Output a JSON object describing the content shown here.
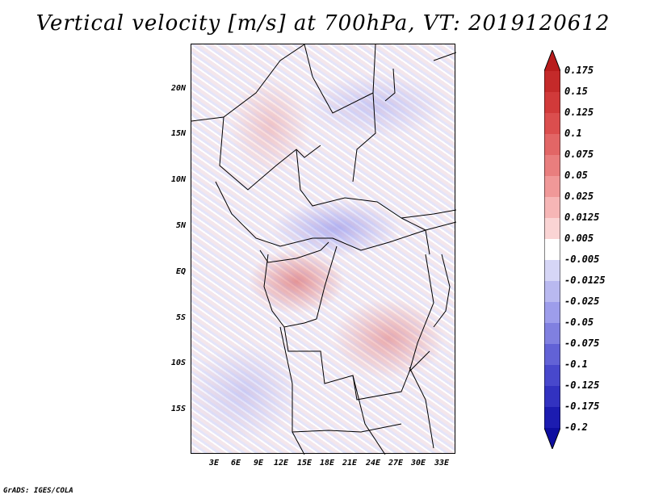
{
  "title": "Vertical velocity [m/s] at 700hPa, VT: 2019120612",
  "footer": "GrADS: IGES/COLA",
  "lat_labels": [
    "20N",
    "15N",
    "10N",
    "5N",
    "EQ",
    "5S",
    "10S",
    "15S"
  ],
  "lon_labels": [
    "3E",
    "6E",
    "9E",
    "12E",
    "15E",
    "18E",
    "21E",
    "24E",
    "27E",
    "30E",
    "33E"
  ],
  "colorbar": {
    "labels": [
      "0.175",
      "0.15",
      "0.125",
      "0.1",
      "0.075",
      "0.05",
      "0.025",
      "0.0125",
      "0.005",
      "-0.005",
      "-0.0125",
      "-0.025",
      "-0.05",
      "-0.075",
      "-0.1",
      "-0.125",
      "-0.175",
      "-0.2"
    ],
    "colors": [
      "#b81c1c",
      "#c42a2a",
      "#d13a3a",
      "#db4e4e",
      "#e26666",
      "#e97e7e",
      "#f09898",
      "#f6b6b6",
      "#fad4d4",
      "#ffffff",
      "#d6d6f6",
      "#b9b9f0",
      "#9d9deb",
      "#8080e0",
      "#6262d6",
      "#4848cc",
      "#3232c0",
      "#1c1cb0",
      "#0e0ea0"
    ]
  }
}
